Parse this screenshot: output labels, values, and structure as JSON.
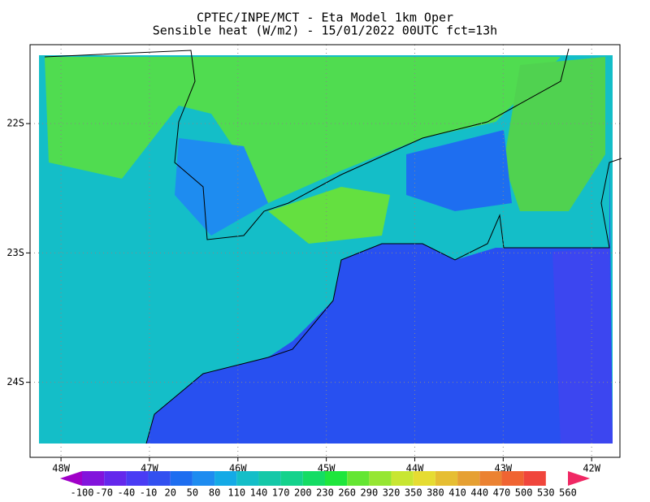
{
  "chart_data": {
    "type": "map",
    "title": "CPTEC/INPE/MCT -  Eta Model 1km Oper",
    "subtitle": "Sensible heat (W/m2) - 15/01/2022 00UTC fct=13h",
    "xlim": [
      -48.35,
      -41.68
    ],
    "ylim": [
      -24.58,
      -21.39
    ],
    "xticks": [
      {
        "value": -48,
        "label": "48W"
      },
      {
        "value": -47,
        "label": "47W"
      },
      {
        "value": -46,
        "label": "46W"
      },
      {
        "value": -45,
        "label": "45W"
      },
      {
        "value": -44,
        "label": "44W"
      },
      {
        "value": -43,
        "label": "43W"
      },
      {
        "value": -42,
        "label": "42W"
      }
    ],
    "yticks": [
      {
        "value": -22,
        "label": "22S"
      },
      {
        "value": -23,
        "label": "23S"
      },
      {
        "value": -24,
        "label": "24S"
      }
    ],
    "grid": true,
    "colorbar": {
      "levels": [
        -100,
        -70,
        -40,
        -10,
        20,
        50,
        80,
        110,
        140,
        170,
        200,
        230,
        260,
        290,
        320,
        350,
        380,
        410,
        440,
        470,
        500,
        530,
        560
      ],
      "colors": [
        "#a000c8",
        "#8214dc",
        "#6428ec",
        "#4a3cf4",
        "#3250f0",
        "#1e6ef0",
        "#1e8cf0",
        "#14aae6",
        "#14bec8",
        "#14c8a8",
        "#14d28c",
        "#14dc64",
        "#1ee63c",
        "#64e632",
        "#96e632",
        "#c8e632",
        "#e6dc32",
        "#e6be32",
        "#e6a032",
        "#eb8232",
        "#f06432",
        "#f0463c",
        "#f02864"
      ]
    }
  }
}
